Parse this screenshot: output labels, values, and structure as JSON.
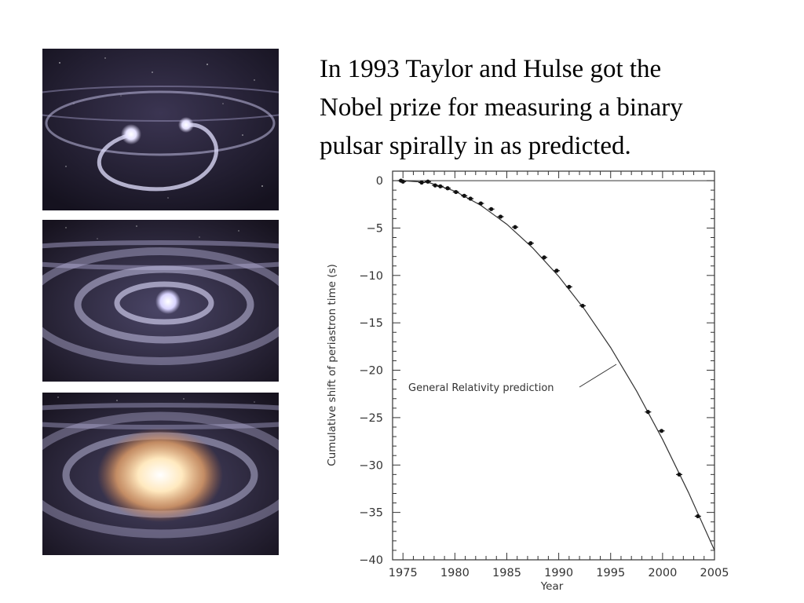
{
  "caption": {
    "lines": [
      " In 1993 Taylor and Hulse got the",
      "Nobel prize for measuring a binary",
      "pulsar spirally in as predicted."
    ]
  },
  "images": [
    {
      "name": "binary-stars-orbiting-panel",
      "description": "two stars orbiting with spiral wake"
    },
    {
      "name": "binary-stars-close-spiral-panel",
      "description": "stars close together in tight spiral"
    },
    {
      "name": "binary-stars-merger-panel",
      "description": "bright merger glow"
    }
  ],
  "colors": {
    "space": "#1a1727",
    "spiral": "#c8c6e8",
    "star": "#ffffff",
    "merger": "#ffcf80",
    "axis": "#333333"
  },
  "chart_data": {
    "type": "scatter",
    "title": "",
    "xlabel": "Year",
    "ylabel": "Cumulative shift of periastron time (s)",
    "xlim": [
      1974,
      2005
    ],
    "ylim": [
      -40,
      1
    ],
    "xticks": [
      1975,
      1980,
      1985,
      1990,
      1995,
      2000,
      2005
    ],
    "yticks": [
      0,
      -5,
      -10,
      -15,
      -20,
      -25,
      -30,
      -35,
      -40
    ],
    "grid": false,
    "annotation": "General Relativity prediction",
    "prediction_curve": {
      "name": "General Relativity prediction",
      "x": [
        1975,
        1977.5,
        1980,
        1982.5,
        1985,
        1987.5,
        1990,
        1992.5,
        1995,
        1997.5,
        2000,
        2002.5,
        2005
      ],
      "y": [
        0,
        -0.2,
        -1.1,
        -2.6,
        -4.6,
        -7.1,
        -10.1,
        -13.6,
        -17.6,
        -22.2,
        -27.3,
        -32.9,
        -39.0
      ]
    },
    "observations": {
      "x": [
        1974.8,
        1975.0,
        1976.8,
        1977.4,
        1978.1,
        1978.6,
        1979.3,
        1980.1,
        1980.9,
        1981.5,
        1982.5,
        1983.5,
        1984.4,
        1985.8,
        1987.3,
        1988.6,
        1989.8,
        1991.0,
        1992.3,
        1998.6,
        1999.9,
        2001.6,
        2003.4
      ],
      "y": [
        0.0,
        -0.1,
        -0.2,
        -0.1,
        -0.5,
        -0.6,
        -0.8,
        -1.2,
        -1.6,
        -1.9,
        -2.4,
        -3.0,
        -3.8,
        -4.9,
        -6.6,
        -8.1,
        -9.5,
        -11.2,
        -13.2,
        -24.4,
        -26.4,
        -31.0,
        -35.4
      ]
    }
  }
}
